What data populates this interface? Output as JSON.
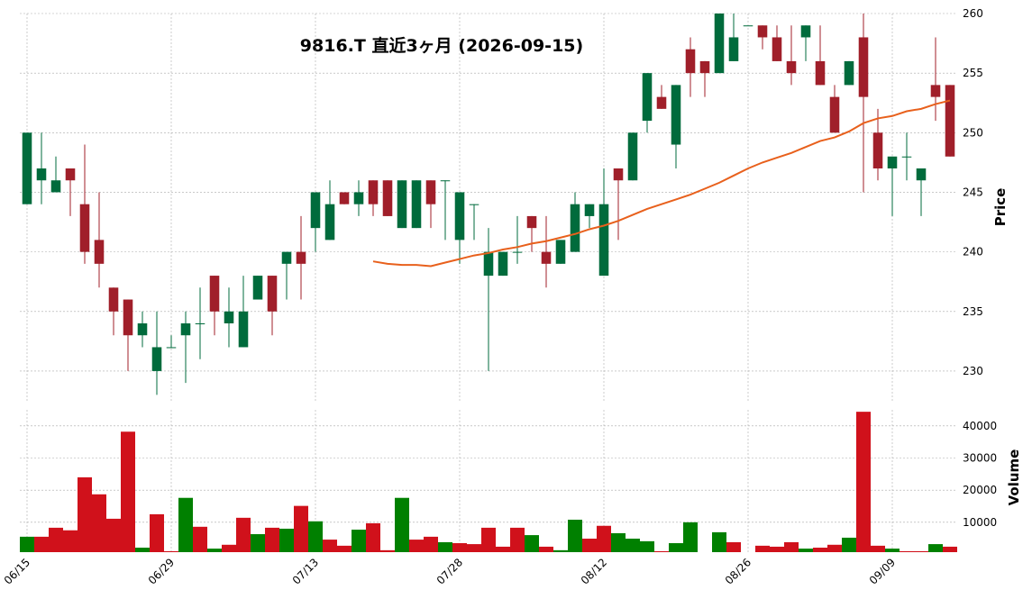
{
  "chart_data": {
    "type": "candlestick",
    "title": "9816.T  直近3ヶ月  (2026-09-15)",
    "categories": [
      "06/15",
      null,
      null,
      null,
      null,
      null,
      null,
      null,
      null,
      null,
      "06/29",
      null,
      null,
      null,
      null,
      null,
      null,
      null,
      null,
      null,
      "07/13",
      null,
      null,
      null,
      null,
      null,
      null,
      null,
      null,
      null,
      "07/28",
      null,
      null,
      null,
      null,
      null,
      null,
      null,
      null,
      null,
      "08/12",
      null,
      null,
      null,
      null,
      null,
      null,
      null,
      null,
      null,
      "08/26",
      null,
      null,
      null,
      null,
      null,
      null,
      null,
      null,
      null,
      "09/09",
      null,
      null,
      null,
      null
    ],
    "open": [
      244,
      246,
      245,
      247,
      244,
      241,
      237,
      236,
      233,
      230,
      232,
      233,
      234,
      238,
      234,
      232,
      236,
      238,
      239,
      240,
      242,
      241,
      245,
      244,
      246,
      246,
      242,
      242,
      246,
      246,
      241,
      244,
      238,
      238,
      240,
      243,
      240,
      239,
      240,
      243,
      238,
      247,
      246,
      251,
      253,
      249,
      257,
      256,
      255,
      256,
      259,
      259,
      258,
      256,
      258,
      256,
      253,
      254,
      258,
      250,
      247,
      248,
      246,
      254,
      254
    ],
    "high": [
      250,
      250,
      248,
      247,
      249,
      245,
      237,
      236,
      235,
      235,
      233,
      235,
      237,
      238,
      237,
      238,
      238,
      238,
      240,
      243,
      245,
      246,
      245,
      246,
      246,
      246,
      246,
      246,
      246,
      246,
      245,
      244,
      242,
      240,
      243,
      243,
      243,
      241,
      245,
      244,
      247,
      247,
      250,
      255,
      254,
      254,
      258,
      256,
      260,
      260,
      259,
      259,
      259,
      259,
      259,
      259,
      254,
      256,
      260,
      252,
      248,
      250,
      247,
      258,
      254
    ],
    "low": [
      244,
      244,
      245,
      243,
      239,
      237,
      233,
      230,
      232,
      228,
      232,
      229,
      231,
      233,
      232,
      232,
      236,
      233,
      236,
      236,
      240,
      241,
      244,
      243,
      243,
      243,
      242,
      242,
      242,
      241,
      239,
      241,
      230,
      238,
      239,
      240,
      237,
      239,
      240,
      242,
      238,
      241,
      246,
      250,
      252,
      247,
      253,
      253,
      255,
      256,
      259,
      257,
      256,
      254,
      256,
      254,
      250,
      254,
      245,
      246,
      243,
      246,
      243,
      251,
      248
    ],
    "close": [
      250,
      247,
      246,
      246,
      240,
      239,
      235,
      233,
      234,
      232,
      232,
      234,
      234,
      235,
      235,
      235,
      238,
      235,
      240,
      239,
      245,
      244,
      244,
      245,
      244,
      243,
      246,
      246,
      244,
      246,
      245,
      244,
      240,
      240,
      240,
      242,
      239,
      241,
      244,
      244,
      244,
      246,
      250,
      255,
      252,
      254,
      255,
      255,
      260,
      258,
      259,
      258,
      256,
      255,
      259,
      254,
      250,
      256,
      253,
      247,
      248,
      248,
      247,
      253,
      248
    ],
    "up_color": "#006b3c",
    "down_color": "#a01f2a",
    "ylim": [
      227.5,
      260
    ],
    "yticks": [
      230,
      235,
      240,
      245,
      250,
      255,
      260
    ],
    "ylabel": "Price",
    "moving_average": {
      "color": "#e8601c",
      "values": [
        null,
        null,
        null,
        null,
        null,
        null,
        null,
        null,
        null,
        null,
        null,
        null,
        null,
        null,
        null,
        null,
        null,
        null,
        null,
        null,
        null,
        null,
        null,
        null,
        239.2,
        239.0,
        238.9,
        238.9,
        238.8,
        239.1,
        239.4,
        239.7,
        239.9,
        240.2,
        240.4,
        240.7,
        240.9,
        241.2,
        241.5,
        241.9,
        242.2,
        242.6,
        243.1,
        243.6,
        244.0,
        244.4,
        244.8,
        245.3,
        245.8,
        246.4,
        247.0,
        247.5,
        247.9,
        248.3,
        248.8,
        249.3,
        249.6,
        250.1,
        250.8,
        251.2,
        251.4,
        251.8,
        252.0,
        252.4,
        252.7
      ]
    },
    "volume": {
      "values": [
        5500,
        5500,
        8300,
        7500,
        24000,
        18700,
        11100,
        38200,
        2100,
        12500,
        1000,
        17600,
        8600,
        1800,
        3000,
        11400,
        6300,
        8300,
        8000,
        15100,
        10300,
        4600,
        2700,
        7700,
        9700,
        1300,
        17600,
        4600,
        5500,
        3800,
        3500,
        3200,
        8300,
        2400,
        8300,
        6000,
        2400,
        1300,
        10800,
        4900,
        8900,
        6600,
        4900,
        4100,
        1000,
        3500,
        10000,
        700,
        6900,
        3800,
        700,
        2700,
        2400,
        3800,
        1800,
        2100,
        3000,
        5200,
        44400,
        2700,
        1800,
        1000,
        1000,
        3200,
        2400
      ],
      "up_color": "#008000",
      "down_color": "#d0111b",
      "ylim": [
        700,
        45000
      ],
      "yticks": [
        10000,
        20000,
        30000,
        40000
      ],
      "ylabel": "Volume"
    },
    "grid": true
  }
}
